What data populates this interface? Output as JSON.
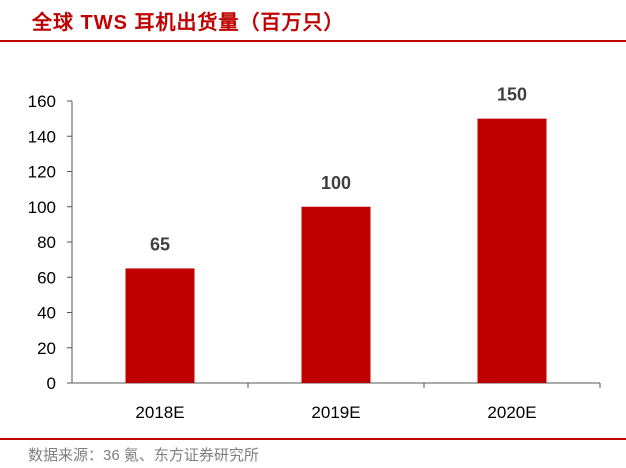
{
  "title": "全球 TWS 耳机出货量（百万只）",
  "source": "数据来源：36 氪、东方证券研究所",
  "colors": {
    "bar": "#c00000",
    "accent": "#c00000"
  },
  "chart_data": {
    "type": "bar",
    "title": "全球 TWS 耳机出货量（百万只）",
    "categories": [
      "2018E",
      "2019E",
      "2020E"
    ],
    "values": [
      65,
      100,
      150
    ],
    "xlabel": "",
    "ylabel": "",
    "ylim": [
      0,
      160
    ],
    "yticks": [
      0,
      20,
      40,
      60,
      80,
      100,
      120,
      140,
      160
    ],
    "grid": false
  }
}
